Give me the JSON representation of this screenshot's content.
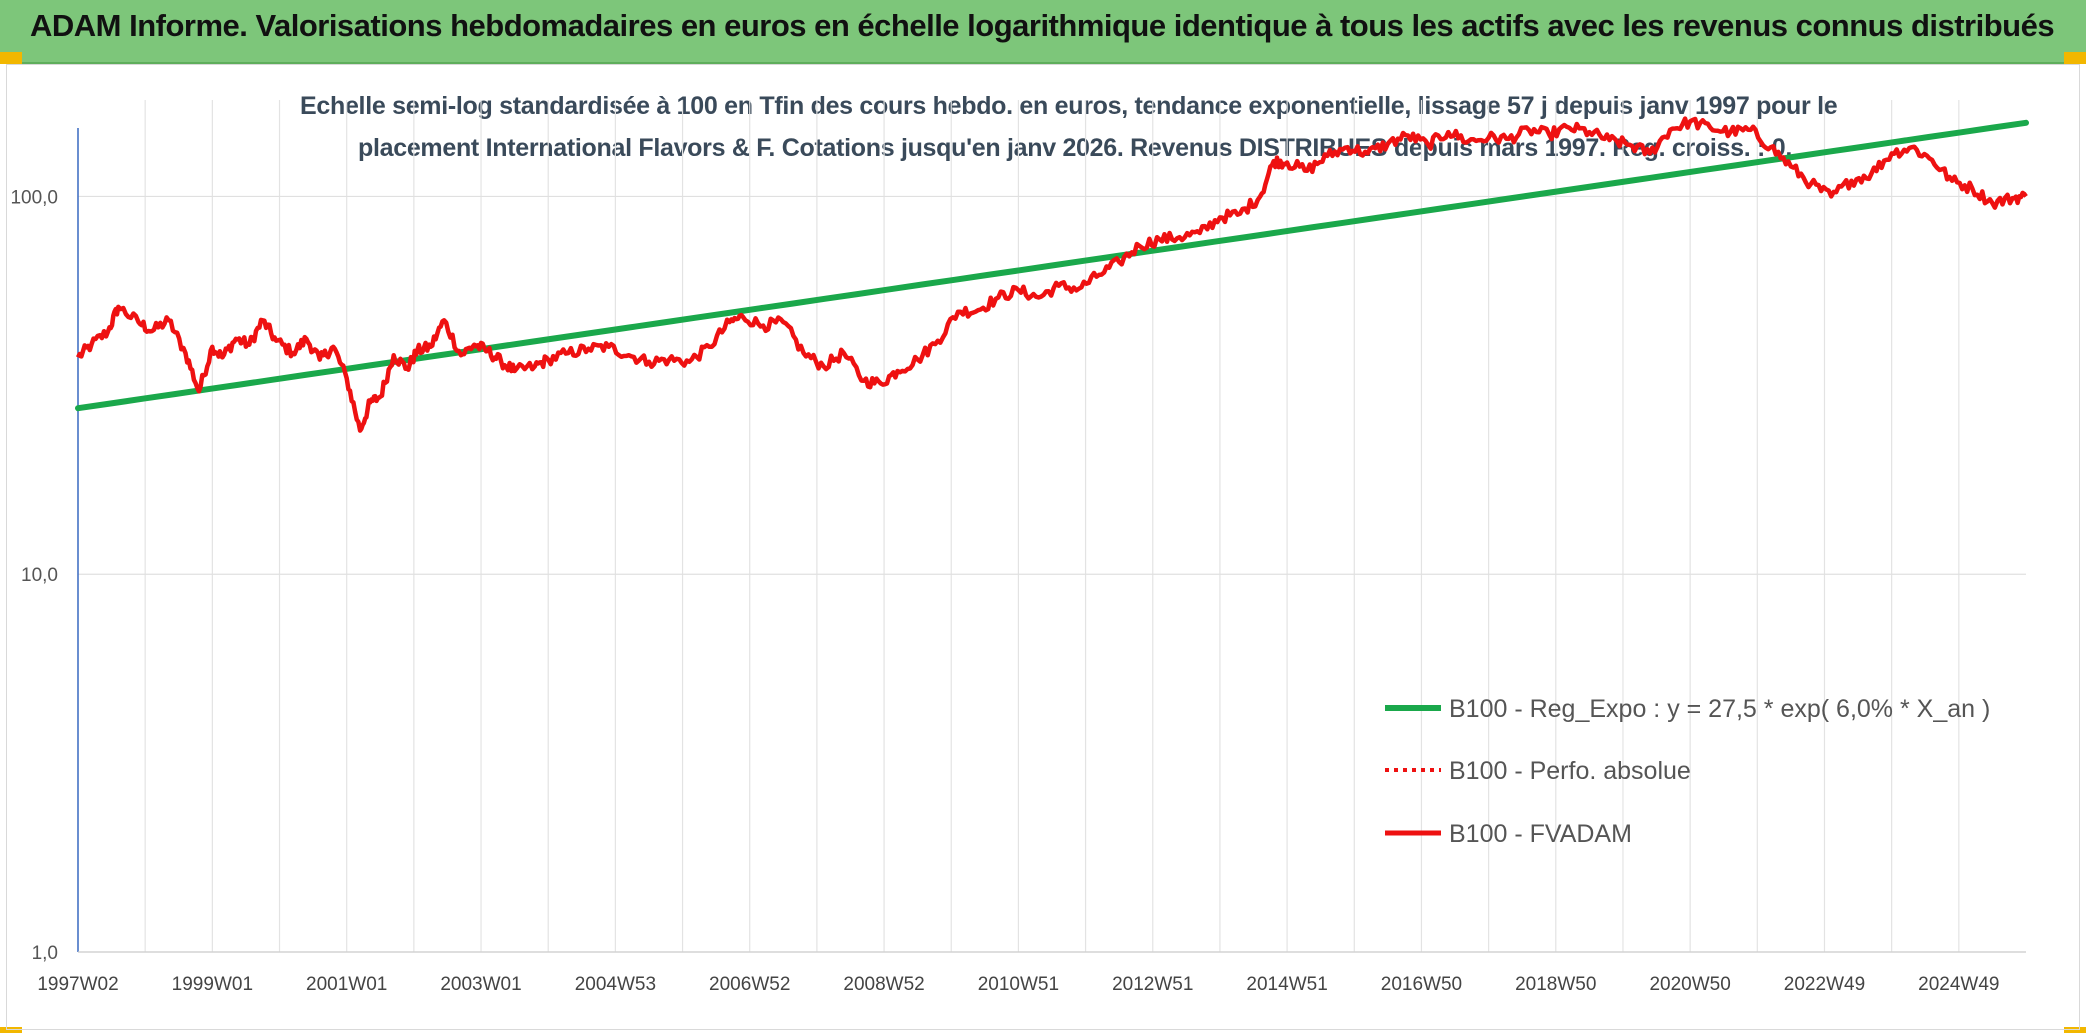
{
  "header": {
    "title": "ADAM Informe. Valorisations hebdomadaires en euros en échelle logarithmique identique à tous les actifs avec les revenus connus distribués"
  },
  "colors": {
    "header_bg": "#7dc67a",
    "trend": "#1aa84b",
    "series": "#ee1111",
    "accent": "#f2b700"
  },
  "chart_data": {
    "type": "line",
    "title_line1": "Echelle semi-log standardisée à 100 en Tfin des cours hebdo. en euros, tendance exponentielle, lissage 57 j depuis janv 1997 pour le",
    "title_line2": "placement International Flavors & F. Cotations jusqu'en janv 2026. Revenus DISTRIBUES depuis mars 1997. Reg. croiss. : 0,",
    "y_scale": "log",
    "ylim": [
      1,
      180
    ],
    "y_ticks": [
      {
        "value": 1,
        "label": "1,0"
      },
      {
        "value": 10,
        "label": "10,0"
      },
      {
        "value": 100,
        "label": "100,0"
      }
    ],
    "xlim": [
      1997.0,
      2026.0
    ],
    "x_ticks": [
      {
        "t": 1997.0,
        "label": "1997W02"
      },
      {
        "t": 1999.0,
        "label": "1999W01"
      },
      {
        "t": 2001.0,
        "label": "2001W01"
      },
      {
        "t": 2003.0,
        "label": "2003W01"
      },
      {
        "t": 2005.0,
        "label": "2004W53"
      },
      {
        "t": 2007.0,
        "label": "2006W52"
      },
      {
        "t": 2009.0,
        "label": "2008W52"
      },
      {
        "t": 2011.0,
        "label": "2010W51"
      },
      {
        "t": 2013.0,
        "label": "2012W51"
      },
      {
        "t": 2015.0,
        "label": "2014W51"
      },
      {
        "t": 2017.0,
        "label": "2016W50"
      },
      {
        "t": 2019.0,
        "label": "2018W50"
      },
      {
        "t": 2021.0,
        "label": "2020W50"
      },
      {
        "t": 2023.0,
        "label": "2022W49"
      },
      {
        "t": 2025.0,
        "label": "2024W49"
      }
    ],
    "legend": "bottom-right",
    "series": [
      {
        "name": "B100 - Reg_Expo : y = 27,5 * exp( 6,0% *  X_an )",
        "style": "solid-thick",
        "color": "#1aa84b",
        "x": [
          1997.0,
          2026.0
        ],
        "values": [
          27.5,
          157
        ]
      },
      {
        "name": "B100 - Perfo. absolue",
        "style": "dotted",
        "color": "#ee1111",
        "x": [],
        "values": []
      },
      {
        "name": "B100 - FVADAM",
        "style": "solid",
        "color": "#ee1111",
        "x": [
          1997.0,
          1997.2,
          1997.45,
          1997.6,
          1997.9,
          1998.1,
          1998.35,
          1998.6,
          1998.8,
          1999.0,
          1999.15,
          1999.35,
          1999.55,
          1999.75,
          1999.95,
          2000.2,
          2000.4,
          2000.6,
          2000.8,
          2001.0,
          2001.2,
          2001.35,
          2001.5,
          2001.7,
          2001.9,
          2002.05,
          2002.25,
          2002.45,
          2002.7,
          2002.9,
          2003.1,
          2003.3,
          2003.5,
          2003.8,
          2004.0,
          2004.3,
          2004.6,
          2004.9,
          2005.2,
          2005.5,
          2005.8,
          2006.1,
          2006.4,
          2006.7,
          2006.9,
          2007.2,
          2007.5,
          2007.8,
          2008.1,
          2008.4,
          2008.7,
          2008.95,
          2009.2,
          2009.5,
          2009.8,
          2010.1,
          2010.4,
          2010.7,
          2011.0,
          2011.3,
          2011.6,
          2011.9,
          2012.2,
          2012.5,
          2012.8,
          2013.1,
          2013.4,
          2013.7,
          2014.0,
          2014.3,
          2014.6,
          2014.8,
          2015.0,
          2015.3,
          2015.6,
          2015.9,
          2016.2,
          2016.5,
          2016.8,
          2017.1,
          2017.4,
          2017.7,
          2018.0,
          2018.3,
          2018.6,
          2018.9,
          2019.2,
          2019.5,
          2019.8,
          2020.1,
          2020.4,
          2020.7,
          2021.0,
          2021.3,
          2021.6,
          2021.9,
          2022.2,
          2022.5,
          2022.8,
          2023.1,
          2023.4,
          2023.7,
          2024.0,
          2024.3,
          2024.6,
          2024.9,
          2025.2,
          2025.5,
          2025.8,
          2026.0
        ],
        "values": [
          37.5,
          40.5,
          44,
          51,
          46.5,
          44,
          47,
          38.5,
          30.5,
          40,
          37.5,
          42,
          40.5,
          47,
          41.5,
          38.5,
          42,
          37,
          40,
          33,
          24,
          28.5,
          29.5,
          38,
          35,
          39,
          40,
          47,
          38,
          40.5,
          39,
          36.5,
          34.5,
          35.5,
          37,
          38.5,
          39.5,
          40,
          38,
          36.5,
          37,
          36.5,
          40,
          46.5,
          48,
          45.5,
          46.5,
          38.5,
          35.5,
          38.5,
          32.5,
          32,
          34.5,
          37,
          41.5,
          49.5,
          50,
          54,
          56.5,
          54,
          58,
          57,
          62,
          67,
          74,
          77,
          78,
          80,
          88,
          90,
          100,
          124,
          123,
          117,
          128,
          135,
          130,
          138,
          145,
          137,
          148,
          140,
          143,
          142,
          150,
          146,
          152,
          148,
          141,
          137,
          130,
          150,
          158,
          152,
          148,
          150,
          135,
          120,
          108,
          100,
          110,
          115,
          130,
          135,
          125,
          110,
          105,
          96,
          99,
          100
        ]
      }
    ]
  }
}
